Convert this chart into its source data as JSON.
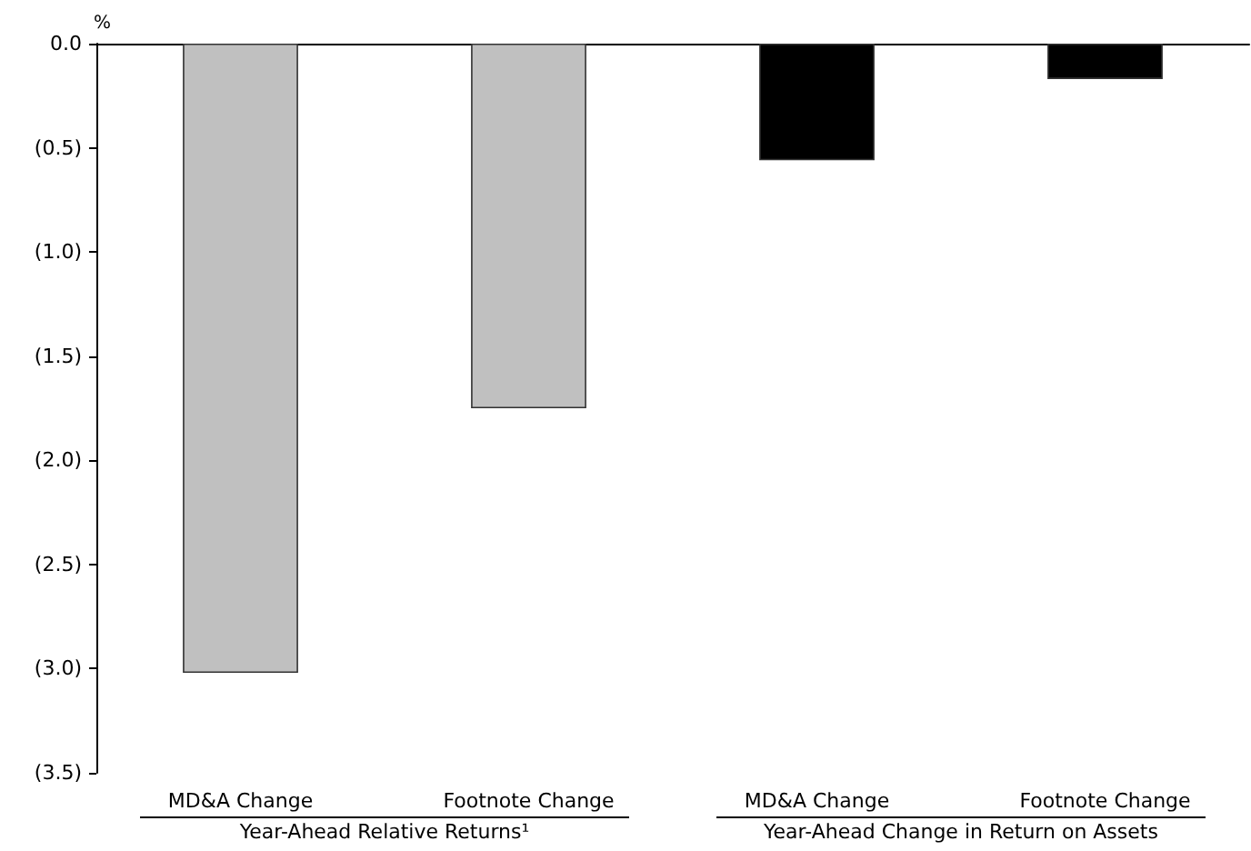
{
  "chart_data": {
    "type": "bar",
    "ylabel": "%",
    "categories": [
      "MD&A Change",
      "Footnote Change",
      "MD&A Change",
      "Footnote Change"
    ],
    "series": [
      {
        "color": "#c0c0c0",
        "values": [
          -3.02,
          -1.75,
          null,
          null
        ]
      },
      {
        "color": "#000000",
        "values": [
          null,
          null,
          -0.56,
          -0.17
        ]
      }
    ],
    "ylim": [
      -3.5,
      0
    ],
    "yticks": [
      {
        "value": 0,
        "label": "0.0"
      },
      {
        "value": -0.5,
        "label": "(0.5)"
      },
      {
        "value": -1,
        "label": "(1.0)"
      },
      {
        "value": -1.5,
        "label": "(1.5)"
      },
      {
        "value": -2,
        "label": "(2.0)"
      },
      {
        "value": -2.5,
        "label": "(2.5)"
      },
      {
        "value": -3,
        "label": "(3.0)"
      },
      {
        "value": -3.5,
        "label": "(3.5)"
      }
    ],
    "annotations": [
      "Year-Ahead Relative Returns¹",
      "Year-Ahead Change in Return on Assets"
    ]
  }
}
